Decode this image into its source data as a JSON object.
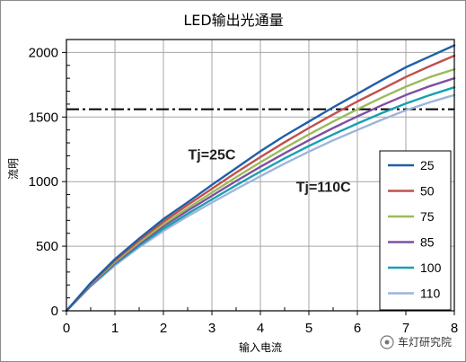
{
  "chart_data": {
    "type": "line",
    "title": "LED输出光通量",
    "xlabel": "输入电流",
    "ylabel": "流明",
    "xlim": [
      0,
      8
    ],
    "ylim": [
      0,
      2100
    ],
    "xticks": [
      0,
      1,
      2,
      3,
      4,
      5,
      6,
      7,
      8
    ],
    "yticks": [
      0,
      500,
      1000,
      1500,
      2000
    ],
    "grid": true,
    "legend_position": "right",
    "reference_line": {
      "y": 1560,
      "style": "dash-dot",
      "color": "#000000"
    },
    "annotations": [
      {
        "text": "Tj=25C",
        "x": 3.0,
        "y": 1170
      },
      {
        "text": "Tj=110C",
        "x": 5.3,
        "y": 920
      }
    ],
    "x": [
      0,
      0.5,
      1,
      1.5,
      2,
      2.5,
      3,
      3.5,
      4,
      4.5,
      5,
      5.5,
      6,
      6.5,
      7,
      7.5,
      8
    ],
    "series": [
      {
        "name": "25",
        "color": "#1f5fa8",
        "values": [
          0,
          215,
          400,
          560,
          710,
          840,
          975,
          1105,
          1235,
          1355,
          1465,
          1575,
          1680,
          1785,
          1885,
          1970,
          2055
        ]
      },
      {
        "name": "50",
        "color": "#c0504d",
        "values": [
          0,
          210,
          390,
          545,
          690,
          820,
          945,
          1070,
          1190,
          1305,
          1415,
          1520,
          1620,
          1715,
          1810,
          1895,
          1975
        ]
      },
      {
        "name": "75",
        "color": "#9bbb59",
        "values": [
          0,
          205,
          380,
          530,
          670,
          795,
          915,
          1035,
          1150,
          1260,
          1365,
          1465,
          1560,
          1650,
          1735,
          1810,
          1870
        ]
      },
      {
        "name": "85",
        "color": "#7f4fa0",
        "values": [
          0,
          200,
          372,
          518,
          655,
          775,
          890,
          1005,
          1115,
          1220,
          1320,
          1415,
          1505,
          1590,
          1670,
          1740,
          1800
        ]
      },
      {
        "name": "100",
        "color": "#1a9fb0",
        "values": [
          0,
          195,
          362,
          505,
          635,
          752,
          862,
          972,
          1078,
          1180,
          1275,
          1365,
          1450,
          1530,
          1605,
          1670,
          1730
        ]
      },
      {
        "name": "110",
        "color": "#9fb4db",
        "values": [
          0,
          190,
          352,
          492,
          618,
          732,
          838,
          942,
          1042,
          1140,
          1232,
          1320,
          1400,
          1478,
          1552,
          1615,
          1670
        ]
      }
    ]
  },
  "watermark": {
    "text": "车灯研究院"
  }
}
